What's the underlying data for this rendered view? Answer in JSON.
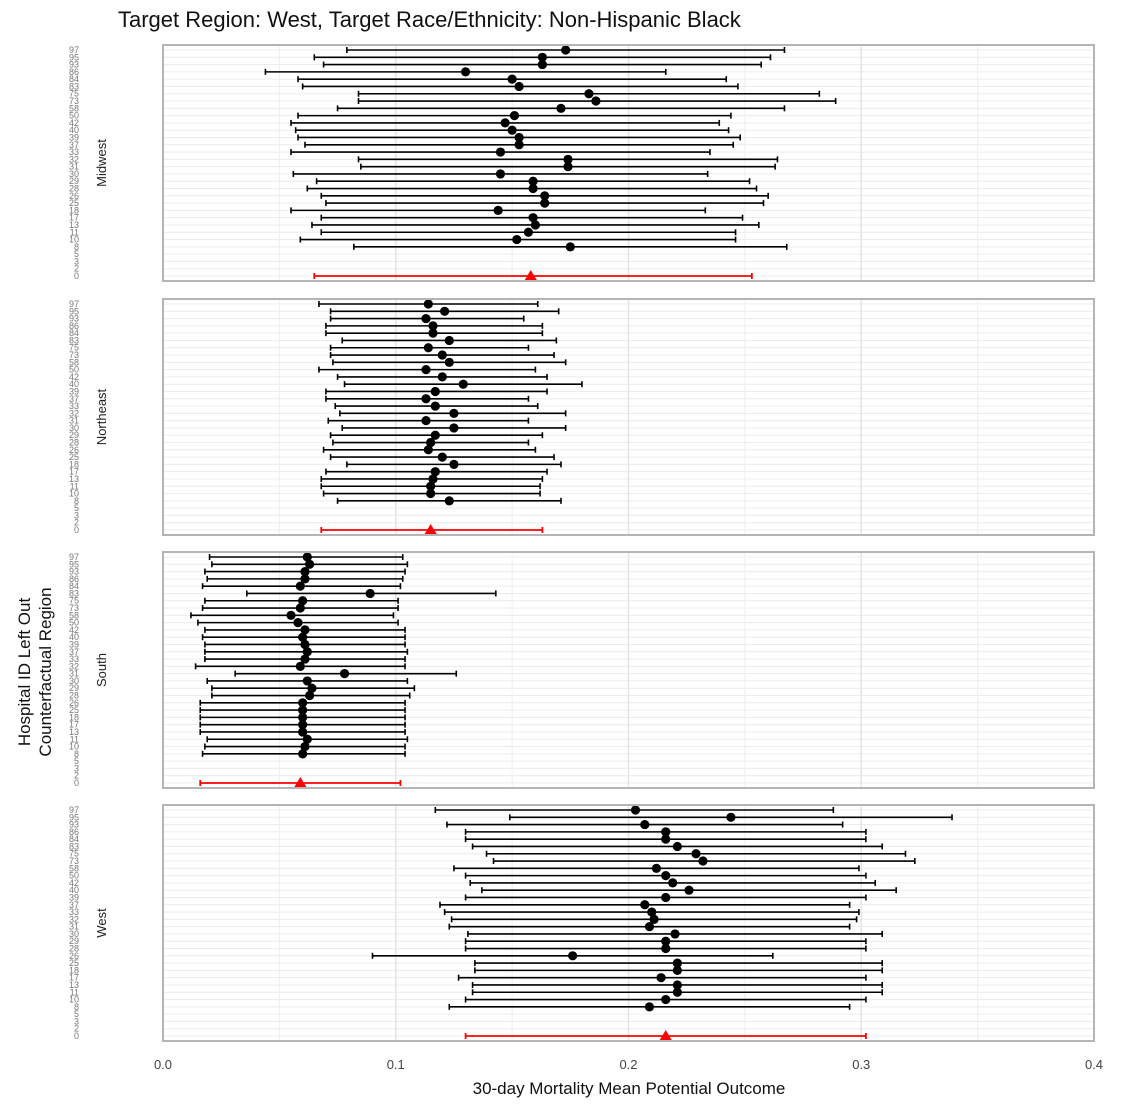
{
  "chart_data": {
    "type": "forest",
    "title": "Target Region: West, Target Race/Ethnicity: Non-Hispanic Black",
    "xlabel": "30-day Mortality Mean Potential Outcome",
    "ylabel": [
      "Hospital ID Left Out",
      "Counterfactual Region"
    ],
    "xlim": [
      0.0,
      0.4
    ],
    "xticks": [
      0.0,
      0.1,
      0.2,
      0.3,
      0.4
    ],
    "xtick_labels": [
      "0.0",
      "0.1",
      "0.2",
      "0.3",
      "0.4"
    ],
    "grid": true,
    "colors": {
      "estimate": "#000000",
      "overall": "#ff0000"
    },
    "row_labels": [
      "97",
      "95",
      "93",
      "86",
      "84",
      "83",
      "75",
      "73",
      "58",
      "50",
      "42",
      "40",
      "39",
      "37",
      "33",
      "32",
      "31",
      "30",
      "29",
      "28",
      "26",
      "25",
      "18",
      "17",
      "13",
      "11",
      "10",
      "8",
      "5",
      "3",
      "2",
      "0"
    ],
    "facets": [
      {
        "name": "Midwest",
        "points": [
          {
            "label": "97",
            "est": 0.173,
            "lo": 0.079,
            "hi": 0.267
          },
          {
            "label": "95",
            "est": 0.163,
            "lo": 0.065,
            "hi": 0.261
          },
          {
            "label": "93",
            "est": 0.163,
            "lo": 0.069,
            "hi": 0.257
          },
          {
            "label": "86",
            "est": 0.13,
            "lo": 0.044,
            "hi": 0.216
          },
          {
            "label": "84",
            "est": 0.15,
            "lo": 0.058,
            "hi": 0.242
          },
          {
            "label": "83",
            "est": 0.153,
            "lo": 0.06,
            "hi": 0.247
          },
          {
            "label": "75",
            "est": 0.183,
            "lo": 0.084,
            "hi": 0.282
          },
          {
            "label": "73",
            "est": 0.186,
            "lo": 0.084,
            "hi": 0.289
          },
          {
            "label": "58",
            "est": 0.171,
            "lo": 0.075,
            "hi": 0.267
          },
          {
            "label": "50",
            "est": 0.151,
            "lo": 0.058,
            "hi": 0.244
          },
          {
            "label": "42",
            "est": 0.147,
            "lo": 0.055,
            "hi": 0.239
          },
          {
            "label": "40",
            "est": 0.15,
            "lo": 0.057,
            "hi": 0.243
          },
          {
            "label": "39",
            "est": 0.153,
            "lo": 0.058,
            "hi": 0.248
          },
          {
            "label": "37",
            "est": 0.153,
            "lo": 0.061,
            "hi": 0.245
          },
          {
            "label": "33",
            "est": 0.145,
            "lo": 0.055,
            "hi": 0.235
          },
          {
            "label": "32",
            "est": 0.174,
            "lo": 0.084,
            "hi": 0.264
          },
          {
            "label": "31",
            "est": 0.174,
            "lo": 0.085,
            "hi": 0.263
          },
          {
            "label": "30",
            "est": 0.145,
            "lo": 0.056,
            "hi": 0.234
          },
          {
            "label": "29",
            "est": 0.159,
            "lo": 0.066,
            "hi": 0.252
          },
          {
            "label": "28",
            "est": 0.159,
            "lo": 0.062,
            "hi": 0.255
          },
          {
            "label": "26",
            "est": 0.164,
            "lo": 0.068,
            "hi": 0.26
          },
          {
            "label": "25",
            "est": 0.164,
            "lo": 0.07,
            "hi": 0.258
          },
          {
            "label": "18",
            "est": 0.144,
            "lo": 0.055,
            "hi": 0.233
          },
          {
            "label": "17",
            "est": 0.159,
            "lo": 0.068,
            "hi": 0.249
          },
          {
            "label": "13",
            "est": 0.16,
            "lo": 0.064,
            "hi": 0.256
          },
          {
            "label": "11",
            "est": 0.157,
            "lo": 0.068,
            "hi": 0.246
          },
          {
            "label": "10",
            "est": 0.152,
            "lo": 0.059,
            "hi": 0.246
          },
          {
            "label": "8",
            "est": 0.175,
            "lo": 0.082,
            "hi": 0.268
          }
        ],
        "overall": {
          "est": 0.158,
          "lo": 0.065,
          "hi": 0.253
        }
      },
      {
        "name": "Northeast",
        "points": [
          {
            "label": "97",
            "est": 0.114,
            "lo": 0.067,
            "hi": 0.161
          },
          {
            "label": "95",
            "est": 0.121,
            "lo": 0.072,
            "hi": 0.17
          },
          {
            "label": "93",
            "est": 0.113,
            "lo": 0.072,
            "hi": 0.155
          },
          {
            "label": "86",
            "est": 0.116,
            "lo": 0.07,
            "hi": 0.163
          },
          {
            "label": "84",
            "est": 0.116,
            "lo": 0.07,
            "hi": 0.163
          },
          {
            "label": "83",
            "est": 0.123,
            "lo": 0.077,
            "hi": 0.169
          },
          {
            "label": "75",
            "est": 0.114,
            "lo": 0.072,
            "hi": 0.157
          },
          {
            "label": "73",
            "est": 0.12,
            "lo": 0.072,
            "hi": 0.168
          },
          {
            "label": "58",
            "est": 0.123,
            "lo": 0.073,
            "hi": 0.173
          },
          {
            "label": "50",
            "est": 0.113,
            "lo": 0.067,
            "hi": 0.16
          },
          {
            "label": "42",
            "est": 0.12,
            "lo": 0.075,
            "hi": 0.165
          },
          {
            "label": "40",
            "est": 0.129,
            "lo": 0.078,
            "hi": 0.18
          },
          {
            "label": "39",
            "est": 0.117,
            "lo": 0.07,
            "hi": 0.165
          },
          {
            "label": "37",
            "est": 0.113,
            "lo": 0.07,
            "hi": 0.157
          },
          {
            "label": "33",
            "est": 0.117,
            "lo": 0.074,
            "hi": 0.161
          },
          {
            "label": "32",
            "est": 0.125,
            "lo": 0.076,
            "hi": 0.173
          },
          {
            "label": "31",
            "est": 0.113,
            "lo": 0.071,
            "hi": 0.157
          },
          {
            "label": "30",
            "est": 0.125,
            "lo": 0.077,
            "hi": 0.173
          },
          {
            "label": "29",
            "est": 0.117,
            "lo": 0.072,
            "hi": 0.163
          },
          {
            "label": "28",
            "est": 0.115,
            "lo": 0.073,
            "hi": 0.157
          },
          {
            "label": "26",
            "est": 0.114,
            "lo": 0.069,
            "hi": 0.16
          },
          {
            "label": "25",
            "est": 0.12,
            "lo": 0.072,
            "hi": 0.168
          },
          {
            "label": "18",
            "est": 0.125,
            "lo": 0.079,
            "hi": 0.171
          },
          {
            "label": "17",
            "est": 0.117,
            "lo": 0.07,
            "hi": 0.165
          },
          {
            "label": "13",
            "est": 0.116,
            "lo": 0.068,
            "hi": 0.163
          },
          {
            "label": "11",
            "est": 0.115,
            "lo": 0.068,
            "hi": 0.162
          },
          {
            "label": "10",
            "est": 0.115,
            "lo": 0.069,
            "hi": 0.162
          },
          {
            "label": "8",
            "est": 0.123,
            "lo": 0.075,
            "hi": 0.171
          }
        ],
        "overall": {
          "est": 0.115,
          "lo": 0.068,
          "hi": 0.163
        }
      },
      {
        "name": "South",
        "points": [
          {
            "label": "97",
            "est": 0.062,
            "lo": 0.02,
            "hi": 0.103
          },
          {
            "label": "95",
            "est": 0.063,
            "lo": 0.021,
            "hi": 0.105
          },
          {
            "label": "93",
            "est": 0.061,
            "lo": 0.018,
            "hi": 0.104
          },
          {
            "label": "86",
            "est": 0.061,
            "lo": 0.019,
            "hi": 0.103
          },
          {
            "label": "84",
            "est": 0.059,
            "lo": 0.017,
            "hi": 0.102
          },
          {
            "label": "83",
            "est": 0.089,
            "lo": 0.036,
            "hi": 0.143
          },
          {
            "label": "75",
            "est": 0.06,
            "lo": 0.018,
            "hi": 0.101
          },
          {
            "label": "73",
            "est": 0.059,
            "lo": 0.017,
            "hi": 0.101
          },
          {
            "label": "58",
            "est": 0.055,
            "lo": 0.012,
            "hi": 0.099
          },
          {
            "label": "50",
            "est": 0.058,
            "lo": 0.015,
            "hi": 0.101
          },
          {
            "label": "42",
            "est": 0.061,
            "lo": 0.018,
            "hi": 0.104
          },
          {
            "label": "40",
            "est": 0.06,
            "lo": 0.017,
            "hi": 0.104
          },
          {
            "label": "39",
            "est": 0.061,
            "lo": 0.018,
            "hi": 0.104
          },
          {
            "label": "37",
            "est": 0.062,
            "lo": 0.018,
            "hi": 0.105
          },
          {
            "label": "33",
            "est": 0.061,
            "lo": 0.018,
            "hi": 0.104
          },
          {
            "label": "32",
            "est": 0.059,
            "lo": 0.014,
            "hi": 0.104
          },
          {
            "label": "31",
            "est": 0.078,
            "lo": 0.031,
            "hi": 0.126
          },
          {
            "label": "30",
            "est": 0.062,
            "lo": 0.019,
            "hi": 0.105
          },
          {
            "label": "29",
            "est": 0.064,
            "lo": 0.021,
            "hi": 0.108
          },
          {
            "label": "28",
            "est": 0.063,
            "lo": 0.021,
            "hi": 0.106
          },
          {
            "label": "26",
            "est": 0.06,
            "lo": 0.016,
            "hi": 0.104
          },
          {
            "label": "25",
            "est": 0.06,
            "lo": 0.016,
            "hi": 0.104
          },
          {
            "label": "18",
            "est": 0.06,
            "lo": 0.016,
            "hi": 0.104
          },
          {
            "label": "17",
            "est": 0.06,
            "lo": 0.016,
            "hi": 0.104
          },
          {
            "label": "13",
            "est": 0.06,
            "lo": 0.016,
            "hi": 0.104
          },
          {
            "label": "11",
            "est": 0.062,
            "lo": 0.019,
            "hi": 0.105
          },
          {
            "label": "10",
            "est": 0.061,
            "lo": 0.018,
            "hi": 0.104
          },
          {
            "label": "8",
            "est": 0.06,
            "lo": 0.017,
            "hi": 0.104
          }
        ],
        "overall": {
          "est": 0.059,
          "lo": 0.016,
          "hi": 0.102
        }
      },
      {
        "name": "West",
        "points": [
          {
            "label": "97",
            "est": 0.203,
            "lo": 0.117,
            "hi": 0.288
          },
          {
            "label": "95",
            "est": 0.244,
            "lo": 0.149,
            "hi": 0.339
          },
          {
            "label": "93",
            "est": 0.207,
            "lo": 0.122,
            "hi": 0.292
          },
          {
            "label": "86",
            "est": 0.216,
            "lo": 0.13,
            "hi": 0.302
          },
          {
            "label": "84",
            "est": 0.216,
            "lo": 0.13,
            "hi": 0.302
          },
          {
            "label": "83",
            "est": 0.221,
            "lo": 0.133,
            "hi": 0.309
          },
          {
            "label": "75",
            "est": 0.229,
            "lo": 0.139,
            "hi": 0.319
          },
          {
            "label": "73",
            "est": 0.232,
            "lo": 0.142,
            "hi": 0.323
          },
          {
            "label": "58",
            "est": 0.212,
            "lo": 0.125,
            "hi": 0.299
          },
          {
            "label": "50",
            "est": 0.216,
            "lo": 0.13,
            "hi": 0.302
          },
          {
            "label": "42",
            "est": 0.219,
            "lo": 0.132,
            "hi": 0.306
          },
          {
            "label": "40",
            "est": 0.226,
            "lo": 0.137,
            "hi": 0.315
          },
          {
            "label": "39",
            "est": 0.216,
            "lo": 0.13,
            "hi": 0.302
          },
          {
            "label": "37",
            "est": 0.207,
            "lo": 0.119,
            "hi": 0.295
          },
          {
            "label": "33",
            "est": 0.21,
            "lo": 0.121,
            "hi": 0.299
          },
          {
            "label": "32",
            "est": 0.211,
            "lo": 0.124,
            "hi": 0.298
          },
          {
            "label": "31",
            "est": 0.209,
            "lo": 0.123,
            "hi": 0.295
          },
          {
            "label": "30",
            "est": 0.22,
            "lo": 0.131,
            "hi": 0.309
          },
          {
            "label": "29",
            "est": 0.216,
            "lo": 0.13,
            "hi": 0.302
          },
          {
            "label": "28",
            "est": 0.216,
            "lo": 0.13,
            "hi": 0.302
          },
          {
            "label": "26",
            "est": 0.176,
            "lo": 0.09,
            "hi": 0.262
          },
          {
            "label": "25",
            "est": 0.221,
            "lo": 0.134,
            "hi": 0.309
          },
          {
            "label": "18",
            "est": 0.221,
            "lo": 0.134,
            "hi": 0.309
          },
          {
            "label": "17",
            "est": 0.214,
            "lo": 0.127,
            "hi": 0.302
          },
          {
            "label": "13",
            "est": 0.221,
            "lo": 0.133,
            "hi": 0.309
          },
          {
            "label": "11",
            "est": 0.221,
            "lo": 0.133,
            "hi": 0.309
          },
          {
            "label": "10",
            "est": 0.216,
            "lo": 0.13,
            "hi": 0.302
          },
          {
            "label": "8",
            "est": 0.209,
            "lo": 0.123,
            "hi": 0.295
          }
        ],
        "overall": {
          "est": 0.216,
          "lo": 0.13,
          "hi": 0.302
        }
      }
    ]
  }
}
